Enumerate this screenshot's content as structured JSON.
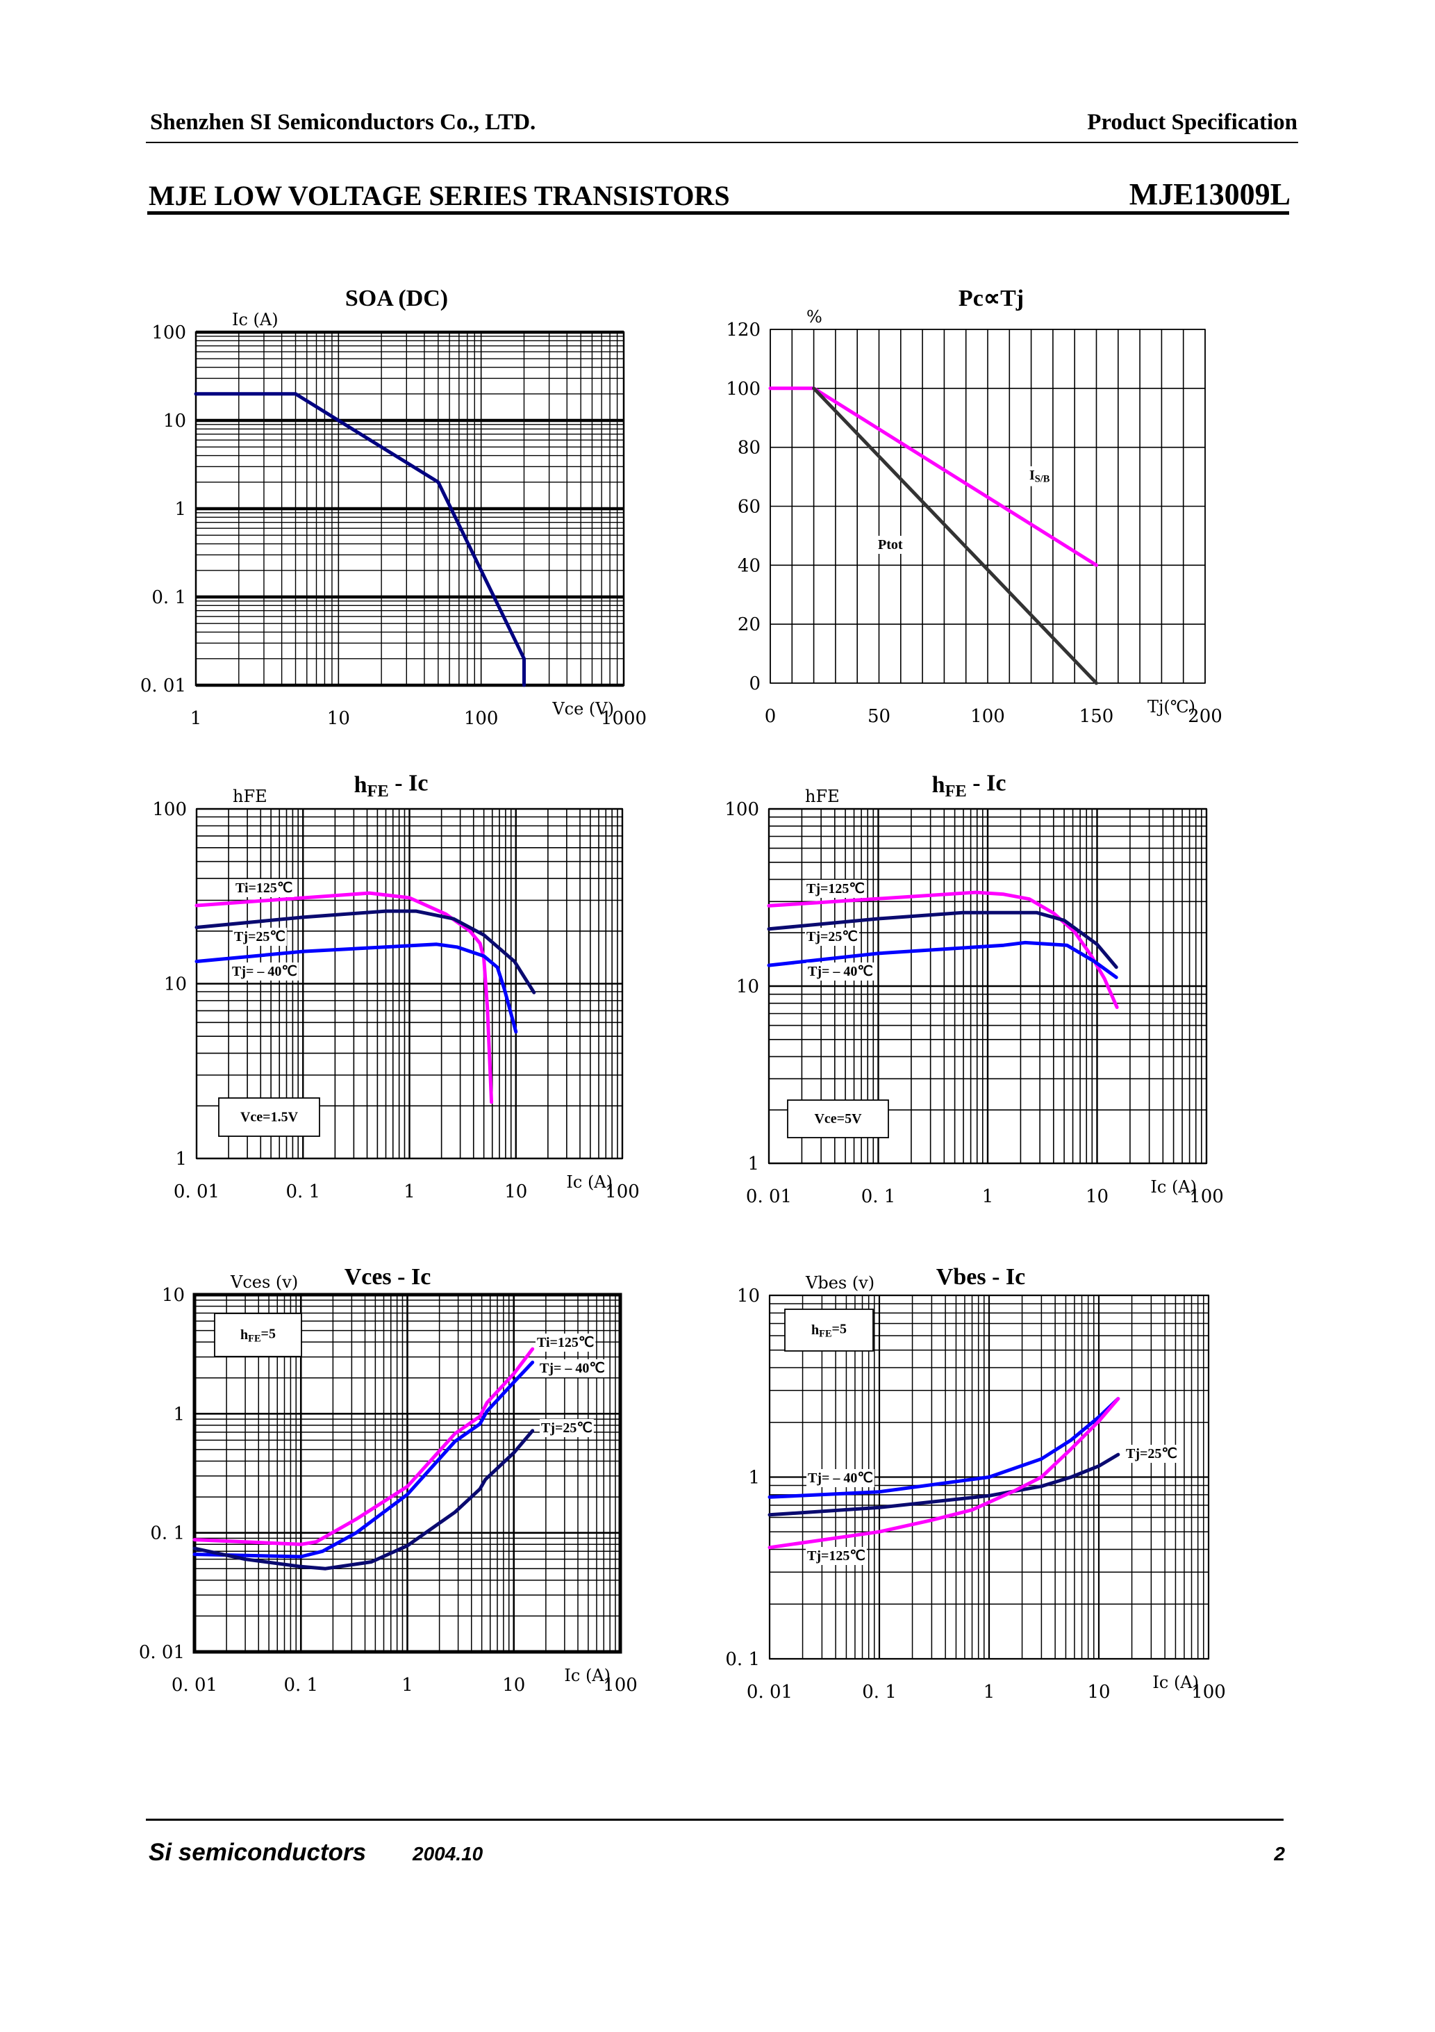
{
  "header": {
    "company": "Shenzhen SI Semiconductors Co., LTD.",
    "doc_type": "Product Specification",
    "series_title": "MJE LOW VOLTAGE SERIES TRANSISTORS",
    "part_number": "MJE13009L"
  },
  "footer": {
    "brand": "Si semiconductors",
    "date": "2004.10",
    "page": "2"
  },
  "colors": {
    "magenta": "#ff00ff",
    "navy": "#0a0a70",
    "blue": "#0000ff",
    "soa": "#000080",
    "ptot": "#333333"
  },
  "chart_data": [
    {
      "type": "line",
      "title": [
        {
          "t": "SOA (DC)"
        }
      ],
      "xlabel": "Vce (V)",
      "ylabel": "Ic (A)",
      "xscale": "log",
      "yscale": "log",
      "xlim": [
        1,
        1000
      ],
      "ylim": [
        0.01,
        100
      ],
      "grid": true,
      "xticks": [
        {
          "v": 1,
          "label": "1"
        },
        {
          "v": 10,
          "label": "10"
        },
        {
          "v": 100,
          "label": "100"
        },
        {
          "v": 1000,
          "label": "1000"
        }
      ],
      "yticks": [
        {
          "v": 100,
          "label": "100"
        },
        {
          "v": 10,
          "label": "10"
        },
        {
          "v": 1,
          "label": "1"
        },
        {
          "v": 0.1,
          "label": "0. 1"
        },
        {
          "v": 0.01,
          "label": "0. 01"
        }
      ],
      "series": [
        {
          "color": "#000080",
          "x": [
            1,
            5,
            50,
            200,
            200
          ],
          "y": [
            20,
            20,
            2,
            0.02,
            0.01
          ]
        }
      ],
      "annotations": []
    },
    {
      "type": "line",
      "title": [
        {
          "t": "Pc∝Tj"
        }
      ],
      "xlabel": "Tj(℃)",
      "ylabel": "%",
      "xscale": "linear",
      "yscale": "linear",
      "xlim": [
        0,
        200
      ],
      "ylim": [
        0,
        120
      ],
      "grid": true,
      "xticks": [
        {
          "v": 0,
          "label": "0"
        },
        {
          "v": 50,
          "label": "50"
        },
        {
          "v": 100,
          "label": "100"
        },
        {
          "v": 150,
          "label": "150"
        },
        {
          "v": 200,
          "label": "200"
        }
      ],
      "yticks": [
        {
          "v": 120,
          "label": "120"
        },
        {
          "v": 100,
          "label": "100"
        },
        {
          "v": 80,
          "label": "80"
        },
        {
          "v": 60,
          "label": "60"
        },
        {
          "v": 40,
          "label": "40"
        },
        {
          "v": 20,
          "label": "20"
        },
        {
          "v": 0,
          "label": "0"
        }
      ],
      "series": [
        {
          "name": [
            {
              "t": "I"
            },
            {
              "t": "S/B",
              "sub": true
            }
          ],
          "color": "#ff00ff",
          "x": [
            0,
            20,
            150
          ],
          "y": [
            100,
            100,
            40
          ]
        },
        {
          "name": [
            {
              "t": "Ptot"
            }
          ],
          "color": "#333333",
          "x": [
            20,
            150
          ],
          "y": [
            100,
            0
          ]
        }
      ],
      "annotations": []
    },
    {
      "type": "line",
      "title": [
        {
          "t": "h"
        },
        {
          "t": "FE",
          "sub": true
        },
        {
          "t": " - Ic"
        }
      ],
      "xlabel": "Ic (A)",
      "ylabel": "hFE",
      "xscale": "log",
      "yscale": "log",
      "xlim": [
        0.01,
        100
      ],
      "ylim": [
        1,
        100
      ],
      "grid": true,
      "xticks": [
        {
          "v": 0.01,
          "label": "0. 01"
        },
        {
          "v": 0.1,
          "label": "0. 1"
        },
        {
          "v": 1,
          "label": "1"
        },
        {
          "v": 10,
          "label": "10"
        },
        {
          "v": 100,
          "label": "100"
        }
      ],
      "yticks": [
        {
          "v": 100,
          "label": "100"
        },
        {
          "v": 10,
          "label": "10"
        },
        {
          "v": 1,
          "label": "1"
        }
      ],
      "series": [
        {
          "name": [
            {
              "t": "Ti=125℃"
            }
          ],
          "color": "#ff00ff",
          "x": [
            0.01,
            0.42,
            1,
            2.2,
            3.7,
            4.6,
            5,
            5.4,
            5.9
          ],
          "y": [
            28,
            33,
            31,
            25,
            20,
            17,
            14,
            7.3,
            2.1
          ]
        },
        {
          "name": [
            {
              "t": "Tj=25℃"
            }
          ],
          "color": "#0a0a70",
          "x": [
            0.01,
            0.1,
            0.6,
            1.15,
            2.6,
            5,
            9.7,
            14.8
          ],
          "y": [
            21,
            24,
            26,
            26,
            23.5,
            19,
            13.4,
            8.9
          ]
        },
        {
          "name": [
            {
              "t": "Tj= – 40℃"
            }
          ],
          "color": "#0000ff",
          "x": [
            0.01,
            0.1,
            1.8,
            2.8,
            5,
            6.7,
            7.8,
            10
          ],
          "y": [
            13.4,
            15.3,
            16.8,
            16.2,
            14.4,
            12.4,
            9.3,
            5.3
          ]
        }
      ],
      "annotations": [
        [
          {
            "t": "Vce=1.5V"
          }
        ]
      ]
    },
    {
      "type": "line",
      "title": [
        {
          "t": "h"
        },
        {
          "t": "FE",
          "sub": true
        },
        {
          "t": " - Ic"
        }
      ],
      "xlabel": "Ic (A)",
      "ylabel": "hFE",
      "xscale": "log",
      "yscale": "log",
      "xlim": [
        0.01,
        100
      ],
      "ylim": [
        1,
        100
      ],
      "grid": true,
      "xticks": [
        {
          "v": 0.01,
          "label": "0. 01"
        },
        {
          "v": 0.1,
          "label": "0. 1"
        },
        {
          "v": 1,
          "label": "1"
        },
        {
          "v": 10,
          "label": "10"
        },
        {
          "v": 100,
          "label": "100"
        }
      ],
      "yticks": [
        {
          "v": 100,
          "label": "100"
        },
        {
          "v": 10,
          "label": "10"
        },
        {
          "v": 1,
          "label": "1"
        }
      ],
      "series": [
        {
          "name": [
            {
              "t": "Tj=125℃"
            }
          ],
          "color": "#ff00ff",
          "x": [
            0.01,
            0.78,
            1.4,
            2.4,
            4,
            6.2,
            8.8,
            11.7,
            15.2
          ],
          "y": [
            28.4,
            33.8,
            33,
            31,
            25.8,
            20.3,
            14.9,
            11,
            7.6
          ]
        },
        {
          "name": [
            {
              "t": "Tj=25℃"
            }
          ],
          "color": "#0a0a70",
          "x": [
            0.01,
            0.1,
            0.59,
            2.8,
            5,
            10,
            15
          ],
          "y": [
            21,
            24,
            26,
            26,
            23.5,
            17.2,
            12.8
          ]
        },
        {
          "name": [
            {
              "t": "Tj= – 40℃"
            }
          ],
          "color": "#0000ff",
          "x": [
            0.01,
            0.1,
            1.4,
            2.2,
            5.3,
            9.4,
            15
          ],
          "y": [
            13.1,
            15.3,
            17,
            17.6,
            17,
            13.8,
            11.2
          ]
        }
      ],
      "annotations": [
        [
          {
            "t": "Vce=5V"
          }
        ]
      ]
    },
    {
      "type": "line",
      "title": [
        {
          "t": "Vces - Ic"
        }
      ],
      "xlabel": "Ic (A)",
      "ylabel": "Vces (v)",
      "xscale": "log",
      "yscale": "log",
      "xlim": [
        0.01,
        100
      ],
      "ylim": [
        0.01,
        10
      ],
      "grid": true,
      "xticks": [
        {
          "v": 0.01,
          "label": "0. 01"
        },
        {
          "v": 0.1,
          "label": "0. 1"
        },
        {
          "v": 1,
          "label": "1"
        },
        {
          "v": 10,
          "label": "10"
        },
        {
          "v": 100,
          "label": "100"
        }
      ],
      "yticks": [
        {
          "v": 10,
          "label": "10"
        },
        {
          "v": 1,
          "label": "1"
        },
        {
          "v": 0.1,
          "label": "0. 1"
        },
        {
          "v": 0.01,
          "label": "0. 01"
        }
      ],
      "series": [
        {
          "name": [
            {
              "t": "Ti=125℃"
            }
          ],
          "color": "#ff00ff",
          "x": [
            0.01,
            0.1,
            0.14,
            0.33,
            1,
            2.8,
            4.8,
            5.6,
            10,
            15
          ],
          "y": [
            0.0875,
            0.08,
            0.084,
            0.13,
            0.245,
            0.68,
            0.95,
            1.24,
            2.17,
            3.5
          ]
        },
        {
          "name": [
            {
              "t": "Tj= – 40℃"
            }
          ],
          "color": "#0000ff",
          "x": [
            0.01,
            0.1,
            0.16,
            0.33,
            1,
            2.8,
            4.8,
            5.6,
            10,
            15
          ],
          "y": [
            0.066,
            0.063,
            0.07,
            0.1,
            0.21,
            0.585,
            0.82,
            1.05,
            1.84,
            2.7
          ]
        },
        {
          "name": [
            {
              "t": "Tj=25℃"
            }
          ],
          "color": "#0a0a70",
          "x": [
            0.01,
            0.03,
            0.1,
            0.17,
            0.46,
            1,
            2.8,
            4.8,
            5.4,
            10,
            15
          ],
          "y": [
            0.074,
            0.06,
            0.052,
            0.05,
            0.057,
            0.078,
            0.149,
            0.233,
            0.28,
            0.47,
            0.72
          ]
        }
      ],
      "annotations": [
        [
          {
            "t": "h"
          },
          {
            "t": "FE",
            "sub": true
          },
          {
            "t": "=5"
          }
        ]
      ]
    },
    {
      "type": "line",
      "title": [
        {
          "t": "Vbes - Ic"
        }
      ],
      "xlabel": "Ic (A)",
      "ylabel": "Vbes (v)",
      "xscale": "log",
      "yscale": "log",
      "xlim": [
        0.01,
        100
      ],
      "ylim": [
        0.1,
        10
      ],
      "grid": true,
      "xticks": [
        {
          "v": 0.01,
          "label": "0. 01"
        },
        {
          "v": 0.1,
          "label": "0. 1"
        },
        {
          "v": 1,
          "label": "1"
        },
        {
          "v": 10,
          "label": "10"
        },
        {
          "v": 100,
          "label": "100"
        }
      ],
      "yticks": [
        {
          "v": 10,
          "label": "10"
        },
        {
          "v": 1,
          "label": "1"
        },
        {
          "v": 0.1,
          "label": "0. 1"
        }
      ],
      "series": [
        {
          "name": [
            {
              "t": "Tj=25℃"
            }
          ],
          "color": "#0a0a70",
          "x": [
            0.01,
            0.1,
            1,
            3,
            5.6,
            10,
            15
          ],
          "y": [
            0.62,
            0.68,
            0.79,
            0.89,
            1.0,
            1.15,
            1.33
          ]
        },
        {
          "name": [
            {
              "t": "Tj= – 40℃"
            }
          ],
          "color": "#0000ff",
          "x": [
            0.01,
            0.1,
            1,
            3,
            5.6,
            10,
            15
          ],
          "y": [
            0.776,
            0.83,
            1.0,
            1.26,
            1.6,
            2.14,
            2.7
          ]
        },
        {
          "name": [
            {
              "t": "Tj=125℃"
            }
          ],
          "color": "#ff00ff",
          "x": [
            0.01,
            0.1,
            0.3,
            0.7,
            1.7,
            3,
            5.6,
            10,
            15
          ],
          "y": [
            0.41,
            0.5,
            0.58,
            0.66,
            0.84,
            1.0,
            1.43,
            2.03,
            2.7
          ]
        }
      ],
      "annotations": [
        [
          {
            "t": "h"
          },
          {
            "t": "FE",
            "sub": true
          },
          {
            "t": "=5"
          }
        ]
      ]
    }
  ]
}
